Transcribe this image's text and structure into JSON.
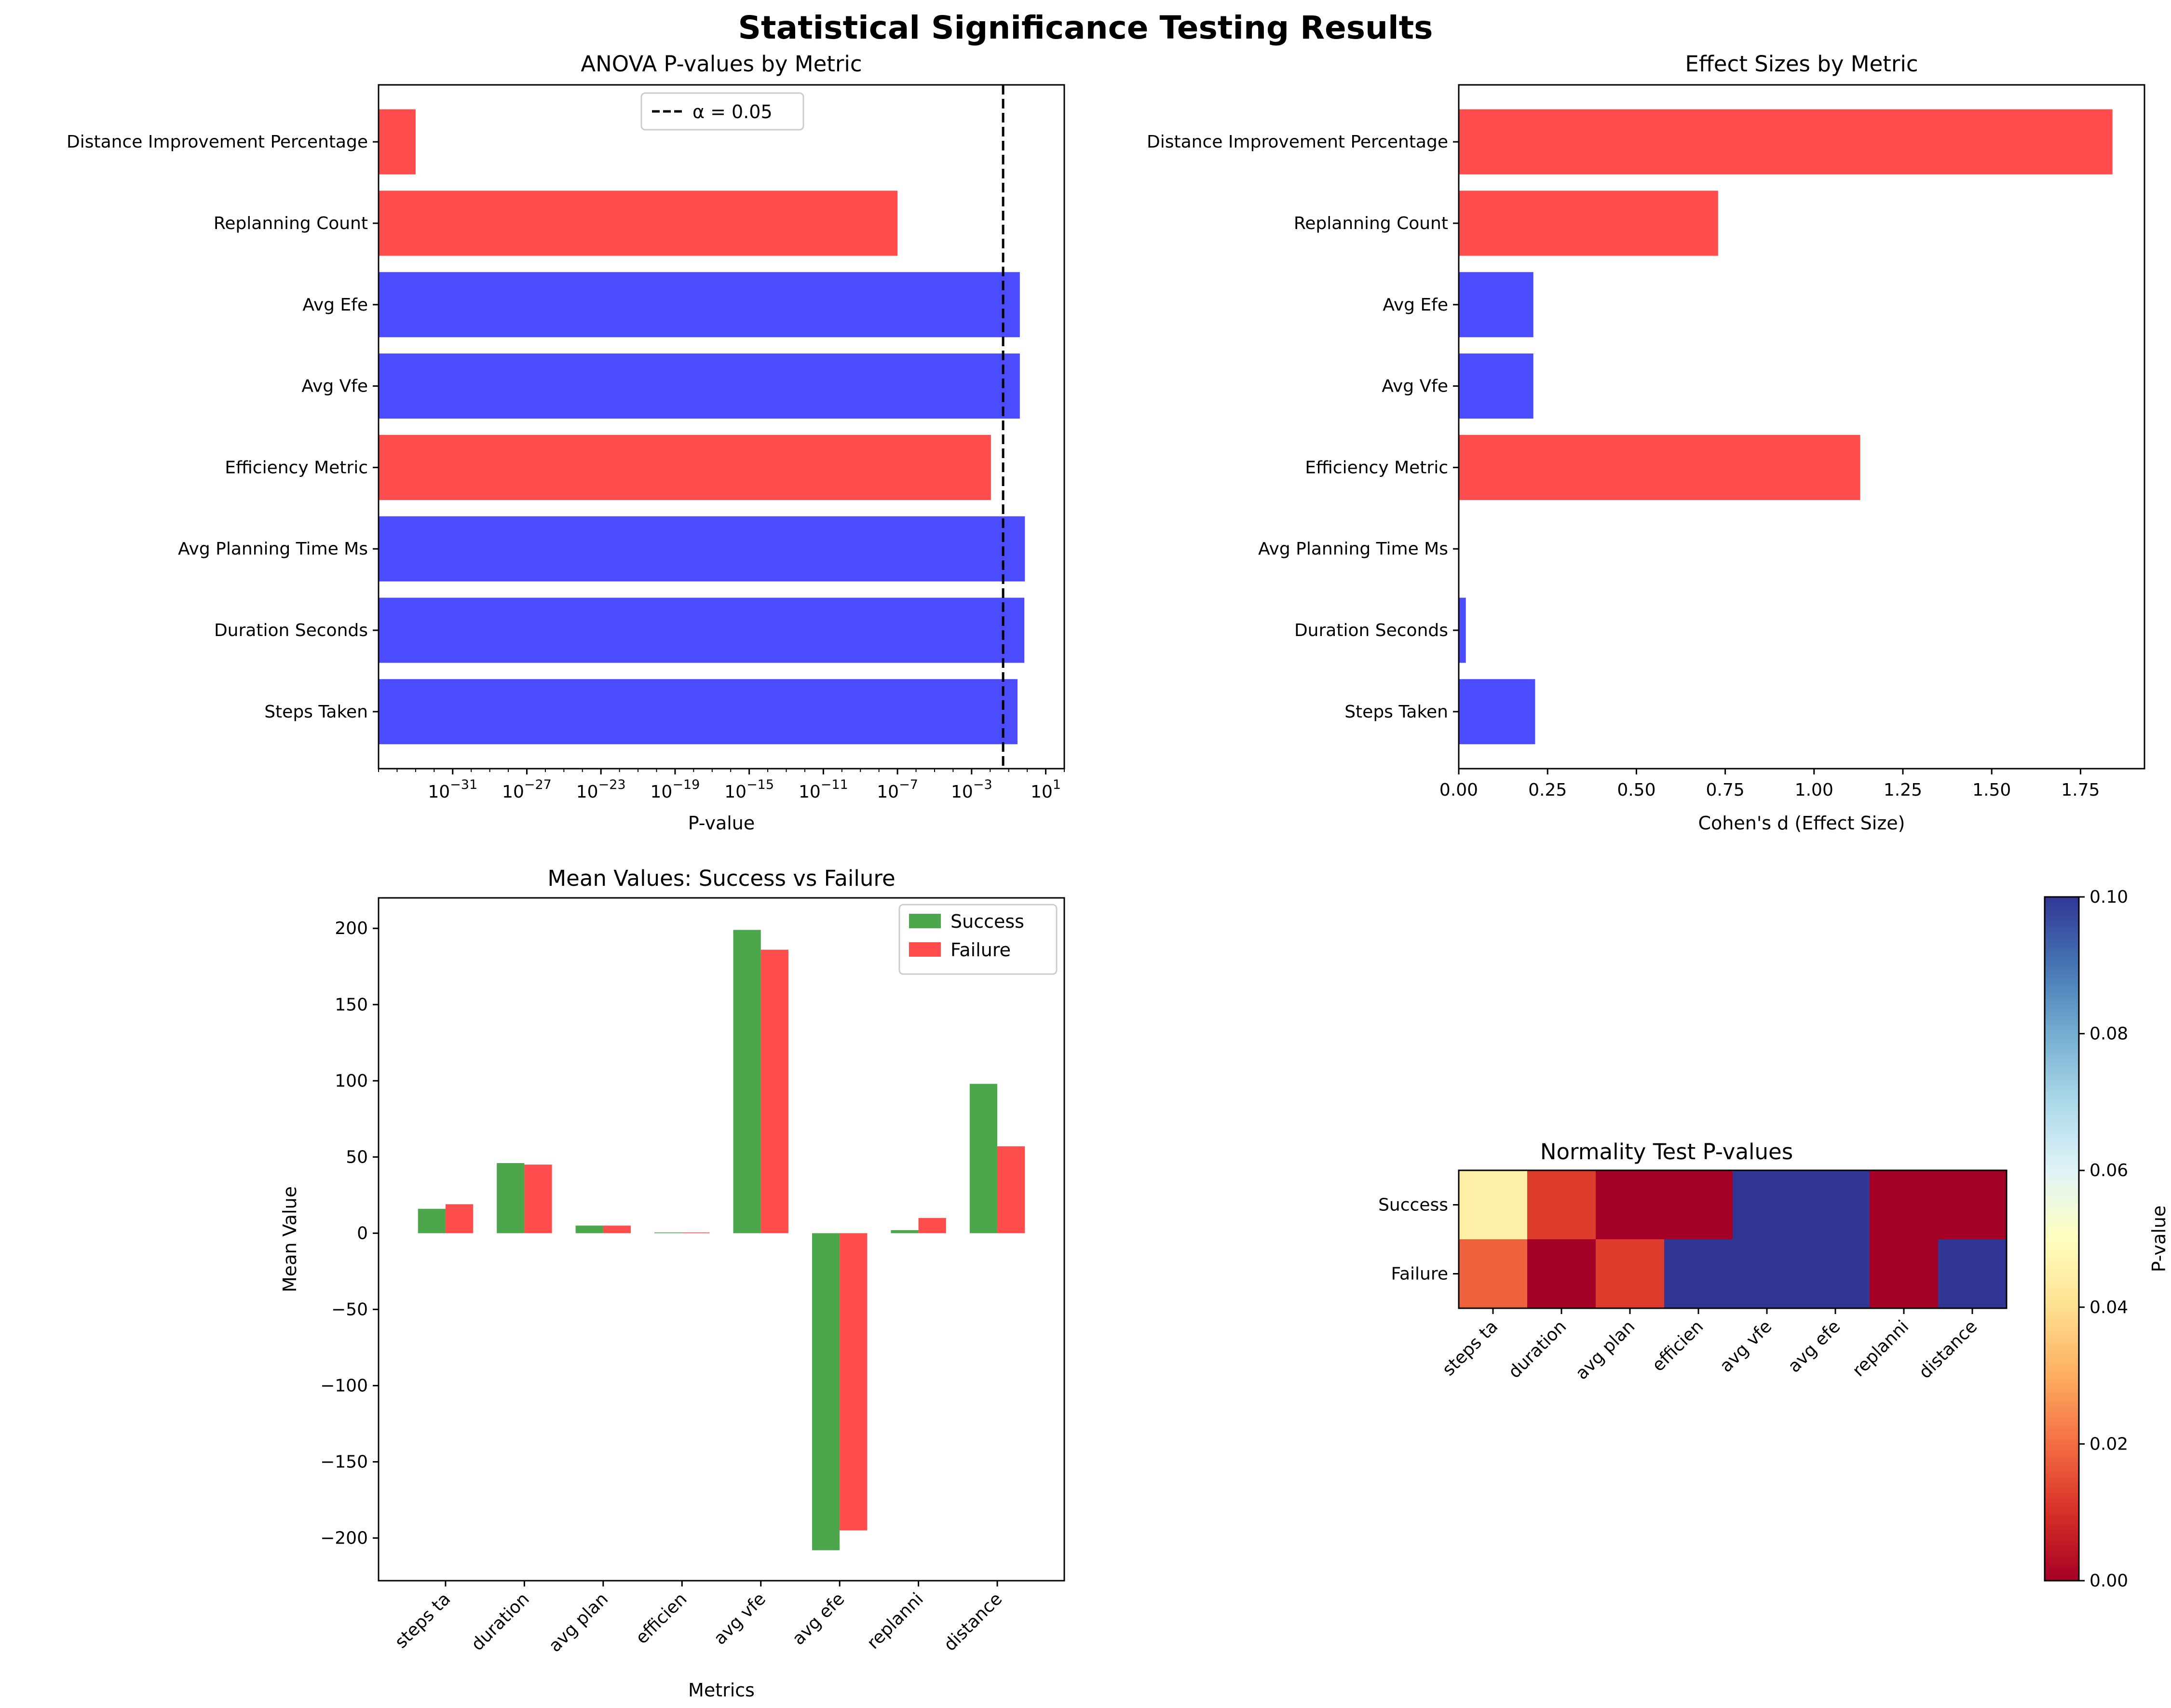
{
  "suptitle": "Statistical Significance Testing Results",
  "colors": {
    "significant": "#ff0000",
    "not_significant": "#0000ff",
    "success": "#008000",
    "failure": "#ff0000",
    "bar_alpha": 0.7
  },
  "chart_data": [
    {
      "id": "anova",
      "type": "bar",
      "orientation": "horizontal",
      "title": "ANOVA P-values by Metric",
      "xlabel": "P-value",
      "ylabel": "",
      "xscale": "log",
      "xlim_log10": [
        -35,
        2
      ],
      "categories": [
        "Steps Taken",
        "Duration Seconds",
        "Avg Planning Time Ms",
        "Efficiency Metric",
        "Avg Vfe",
        "Avg Efe",
        "Replanning Count",
        "Distance Improvement Percentage"
      ],
      "values": [
        0.3,
        0.7,
        0.75,
        0.011,
        0.4,
        0.4,
        1e-07,
        1e-33
      ],
      "significant": [
        false,
        false,
        false,
        true,
        false,
        false,
        true,
        true
      ],
      "tick_exponents": [
        -31,
        -27,
        -23,
        -19,
        -15,
        -11,
        -7,
        -3,
        1
      ],
      "threshold": {
        "value": 0.05,
        "label": "α = 0.05"
      },
      "legend_position": "top-center"
    },
    {
      "id": "effect",
      "type": "bar",
      "orientation": "horizontal",
      "title": "Effect Sizes by Metric",
      "xlabel": "Cohen's d (Effect Size)",
      "ylabel": "",
      "xlim": [
        0,
        1.93
      ],
      "categories": [
        "Steps Taken",
        "Duration Seconds",
        "Avg Planning Time Ms",
        "Efficiency Metric",
        "Avg Vfe",
        "Avg Efe",
        "Replanning Count",
        "Distance Improvement Percentage"
      ],
      "values": [
        0.215,
        0.02,
        0.0,
        1.13,
        0.21,
        0.21,
        0.73,
        1.84
      ],
      "significant": [
        false,
        false,
        false,
        true,
        false,
        false,
        true,
        true
      ],
      "xticks": [
        "0.00",
        "0.25",
        "0.50",
        "0.75",
        "1.00",
        "1.25",
        "1.50",
        "1.75"
      ]
    },
    {
      "id": "means",
      "type": "bar",
      "title": "Mean Values: Success vs Failure",
      "xlabel": "Metrics",
      "ylabel": "Mean Value",
      "ylim": [
        -228,
        220
      ],
      "categories": [
        "steps ta",
        "duration",
        "avg plan",
        "efficien",
        "avg vfe",
        "avg efe",
        "replanni",
        "distance"
      ],
      "series": [
        {
          "name": "Success",
          "values": [
            16,
            46,
            5,
            0.5,
            199,
            -208,
            2,
            98
          ]
        },
        {
          "name": "Failure",
          "values": [
            19,
            45,
            5,
            0.5,
            186,
            -195,
            10,
            57
          ]
        }
      ],
      "yticks": [
        200,
        150,
        100,
        50,
        0,
        -50,
        -100,
        -150,
        -200
      ],
      "legend_position": "top-right"
    },
    {
      "id": "normality",
      "type": "heatmap",
      "title": "Normality Test P-values",
      "rows": [
        "Success",
        "Failure"
      ],
      "columns": [
        "steps ta",
        "duration",
        "avg plan",
        "efficien",
        "avg vfe",
        "avg efe",
        "replanni",
        "distance"
      ],
      "values": [
        [
          0.045,
          0.012,
          0.0,
          0.0,
          0.1,
          0.1,
          0.0,
          0.0
        ],
        [
          0.018,
          0.0,
          0.012,
          0.1,
          0.1,
          0.1,
          0.0,
          0.1
        ]
      ],
      "colormap": "RdYlBu",
      "vmin": 0.0,
      "vmax": 0.1,
      "colorbar_label": "P-value",
      "colorbar_ticks": [
        "0.00",
        "0.02",
        "0.04",
        "0.06",
        "0.08",
        "0.10"
      ]
    }
  ]
}
